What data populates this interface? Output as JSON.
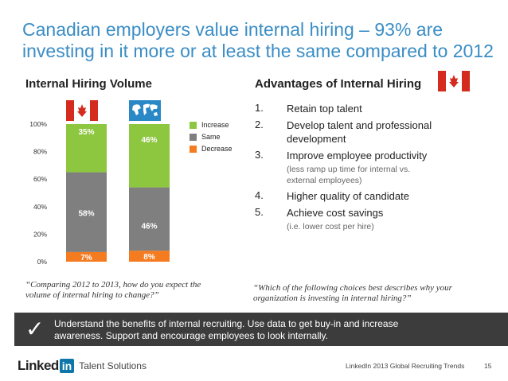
{
  "title": {
    "line1": "Canadian employers value internal hiring – 93% are",
    "line2": "investing in it more or at least the same compared to 2012"
  },
  "left": {
    "heading": "Internal Hiring Volume",
    "quote": "“Comparing 2012 to 2013, how do you expect the volume of internal hiring to change?”"
  },
  "right": {
    "heading": "Advantages of Internal Hiring",
    "items": [
      {
        "num": "1.",
        "text": "Retain top talent",
        "sub": ""
      },
      {
        "num": "2.",
        "text": "Develop talent and professional development",
        "sub": ""
      },
      {
        "num": "3.",
        "text": "Improve employee productivity",
        "sub": "(less ramp up time for internal vs. external employees)"
      },
      {
        "num": "4.",
        "text": "Higher quality of candidate",
        "sub": ""
      },
      {
        "num": "5.",
        "text": "Achieve cost savings",
        "sub": "(i.e. lower cost per hire)"
      }
    ],
    "quote": "“Which of the following choices best describes why your organization is investing in internal hiring?”"
  },
  "banner": {
    "check": "✓",
    "text": "Understand the benefits of internal recruiting. Use data to get buy-in and increase awareness. Support and encourage employees to look internally."
  },
  "footer": {
    "logo_word": "Linked",
    "logo_in": "in",
    "logo_sub": "Talent Solutions",
    "source": "LinkedIn 2013 Global Recruiting Trends",
    "page": "15"
  },
  "chart_data": {
    "type": "bar",
    "stacked": true,
    "categories": [
      "Canada",
      "Global"
    ],
    "series": [
      {
        "name": "Decrease",
        "values": [
          7,
          8
        ],
        "color": "#f47b20"
      },
      {
        "name": "Same",
        "values": [
          58,
          46
        ],
        "color": "#7f7f7f"
      },
      {
        "name": "Increase",
        "values": [
          35,
          46
        ],
        "color": "#8dc63f"
      }
    ],
    "labels": [
      [
        "7%",
        "8%"
      ],
      [
        "58%",
        "46%"
      ],
      [
        "35%",
        "46%"
      ]
    ],
    "ylim": [
      0,
      100
    ],
    "yticks": [
      "0%",
      "20%",
      "40%",
      "60%",
      "80%",
      "100%"
    ],
    "legend": [
      "Increase",
      "Same",
      "Decrease"
    ],
    "legend_colors": [
      "#8dc63f",
      "#7f7f7f",
      "#f47b20"
    ],
    "legend_position": "right"
  }
}
